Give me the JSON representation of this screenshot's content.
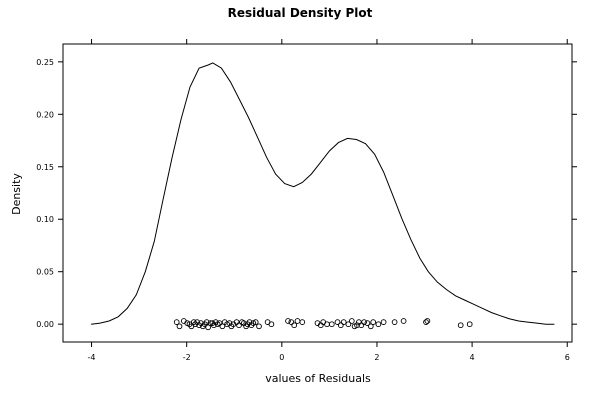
{
  "chart_data": {
    "type": "line",
    "title": "Residual Density Plot",
    "xlabel": "values of Residuals",
    "ylabel": "Density",
    "xlim": [
      -4.6,
      6.1
    ],
    "ylim": [
      -0.017,
      0.267
    ],
    "x_ticks": [
      -4,
      -2,
      0,
      2,
      4,
      6
    ],
    "x_tick_labels": [
      "-4",
      "-2",
      "0",
      "2",
      "4",
      "6"
    ],
    "y_ticks": [
      0.0,
      0.05,
      0.1,
      0.15,
      0.2,
      0.25
    ],
    "y_tick_labels": [
      "0.00",
      "0.05",
      "0.10",
      "0.15",
      "0.20",
      "0.25"
    ],
    "grid": false,
    "series": [
      {
        "kind": "density-curve",
        "x": [
          -4.01,
          -3.82,
          -3.63,
          -3.44,
          -3.25,
          -3.06,
          -2.87,
          -2.68,
          -2.5,
          -2.31,
          -2.12,
          -1.93,
          -1.74,
          -1.55,
          -1.45,
          -1.27,
          -1.08,
          -0.89,
          -0.7,
          -0.51,
          -0.32,
          -0.13,
          0.06,
          0.25,
          0.43,
          0.62,
          0.81,
          1.0,
          1.19,
          1.38,
          1.57,
          1.76,
          1.95,
          2.14,
          2.33,
          2.52,
          2.71,
          2.9,
          3.08,
          3.27,
          3.46,
          3.65,
          3.84,
          4.03,
          4.22,
          4.41,
          4.6,
          4.79,
          4.98,
          5.17,
          5.36,
          5.55,
          5.73
        ],
        "y": [
          0.0,
          0.001,
          0.003,
          0.007,
          0.015,
          0.028,
          0.05,
          0.079,
          0.118,
          0.158,
          0.195,
          0.226,
          0.244,
          0.247,
          0.249,
          0.244,
          0.231,
          0.214,
          0.197,
          0.178,
          0.159,
          0.143,
          0.134,
          0.131,
          0.135,
          0.143,
          0.154,
          0.165,
          0.173,
          0.177,
          0.176,
          0.172,
          0.162,
          0.145,
          0.123,
          0.101,
          0.081,
          0.063,
          0.05,
          0.04,
          0.033,
          0.027,
          0.023,
          0.019,
          0.015,
          0.011,
          0.008,
          0.005,
          0.003,
          0.002,
          0.001,
          0.0,
          0.0
        ]
      },
      {
        "kind": "rug-points",
        "x": [
          -2.21,
          -2.15,
          -2.06,
          -1.99,
          -1.94,
          -1.9,
          -1.85,
          -1.82,
          -1.78,
          -1.74,
          -1.7,
          -1.66,
          -1.62,
          -1.58,
          -1.55,
          -1.5,
          -1.46,
          -1.43,
          -1.39,
          -1.35,
          -1.31,
          -1.25,
          -1.2,
          -1.15,
          -1.1,
          -1.06,
          -1.02,
          -0.95,
          -0.9,
          -0.84,
          -0.8,
          -0.75,
          -0.72,
          -0.68,
          -0.64,
          -0.6,
          -0.55,
          -0.48,
          -0.3,
          -0.22,
          0.13,
          0.2,
          0.26,
          0.33,
          0.43,
          0.75,
          0.82,
          0.87,
          0.95,
          1.05,
          1.17,
          1.24,
          1.3,
          1.4,
          1.47,
          1.53,
          1.58,
          1.62,
          1.67,
          1.73,
          1.8,
          1.87,
          1.92,
          2.03,
          2.14,
          2.37,
          2.56,
          3.03,
          3.06,
          3.76,
          3.95
        ],
        "y": [
          0.002,
          -0.002,
          0.003,
          0.001,
          0.0,
          -0.002,
          0.002,
          0.0,
          0.002,
          -0.001,
          0.001,
          -0.002,
          0.0,
          0.002,
          -0.003,
          0.001,
          0.001,
          -0.001,
          0.002,
          0.0,
          0.001,
          -0.002,
          0.002,
          0.0,
          0.001,
          -0.002,
          0.0,
          0.002,
          -0.001,
          0.002,
          0.001,
          -0.002,
          0.0,
          0.002,
          -0.001,
          0.001,
          0.002,
          -0.002,
          0.002,
          0.0,
          0.003,
          0.002,
          -0.001,
          0.003,
          0.002,
          0.001,
          -0.001,
          0.002,
          0.0,
          0.0,
          0.002,
          -0.001,
          0.002,
          0.0,
          0.003,
          -0.002,
          -0.001,
          0.002,
          -0.001,
          0.002,
          0.001,
          -0.002,
          0.002,
          0.0,
          0.002,
          0.002,
          0.003,
          0.002,
          0.003,
          -0.001,
          0.0
        ]
      }
    ]
  }
}
